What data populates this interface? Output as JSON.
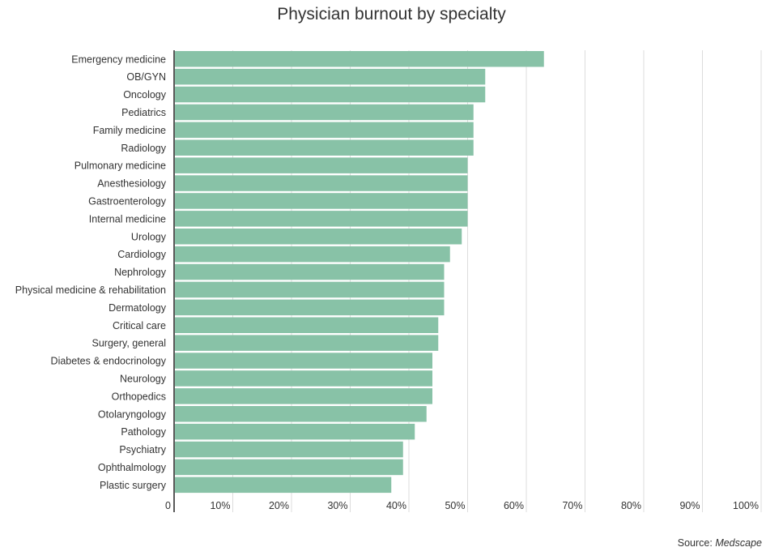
{
  "chart_data": {
    "type": "bar",
    "orientation": "horizontal",
    "title": "Physician burnout by specialty",
    "categories": [
      "Emergency medicine",
      "OB/GYN",
      "Oncology",
      "Pediatrics",
      "Family medicine",
      "Radiology",
      "Pulmonary medicine",
      "Anesthesiology",
      "Gastroenterology",
      "Internal medicine",
      "Urology",
      "Cardiology",
      "Nephrology",
      "Physical medicine & rehabilitation",
      "Dermatology",
      "Critical care",
      "Surgery, general",
      "Diabetes & endocrinology",
      "Neurology",
      "Orthopedics",
      "Otolaryngology",
      "Pathology",
      "Psychiatry",
      "Ophthalmology",
      "Plastic surgery"
    ],
    "values": [
      63,
      53,
      53,
      51,
      51,
      51,
      50,
      50,
      50,
      50,
      49,
      47,
      46,
      46,
      46,
      45,
      45,
      44,
      44,
      44,
      43,
      41,
      39,
      39,
      37
    ],
    "xlim": [
      0,
      100
    ],
    "ticks": [
      "0",
      "10%",
      "20%",
      "30%",
      "40%",
      "50%",
      "60%",
      "70%",
      "80%",
      "90%",
      "100%"
    ],
    "bar_color": "#88c2a7",
    "grid": true
  },
  "source": {
    "prefix": "Source: ",
    "name": "Medscape"
  }
}
